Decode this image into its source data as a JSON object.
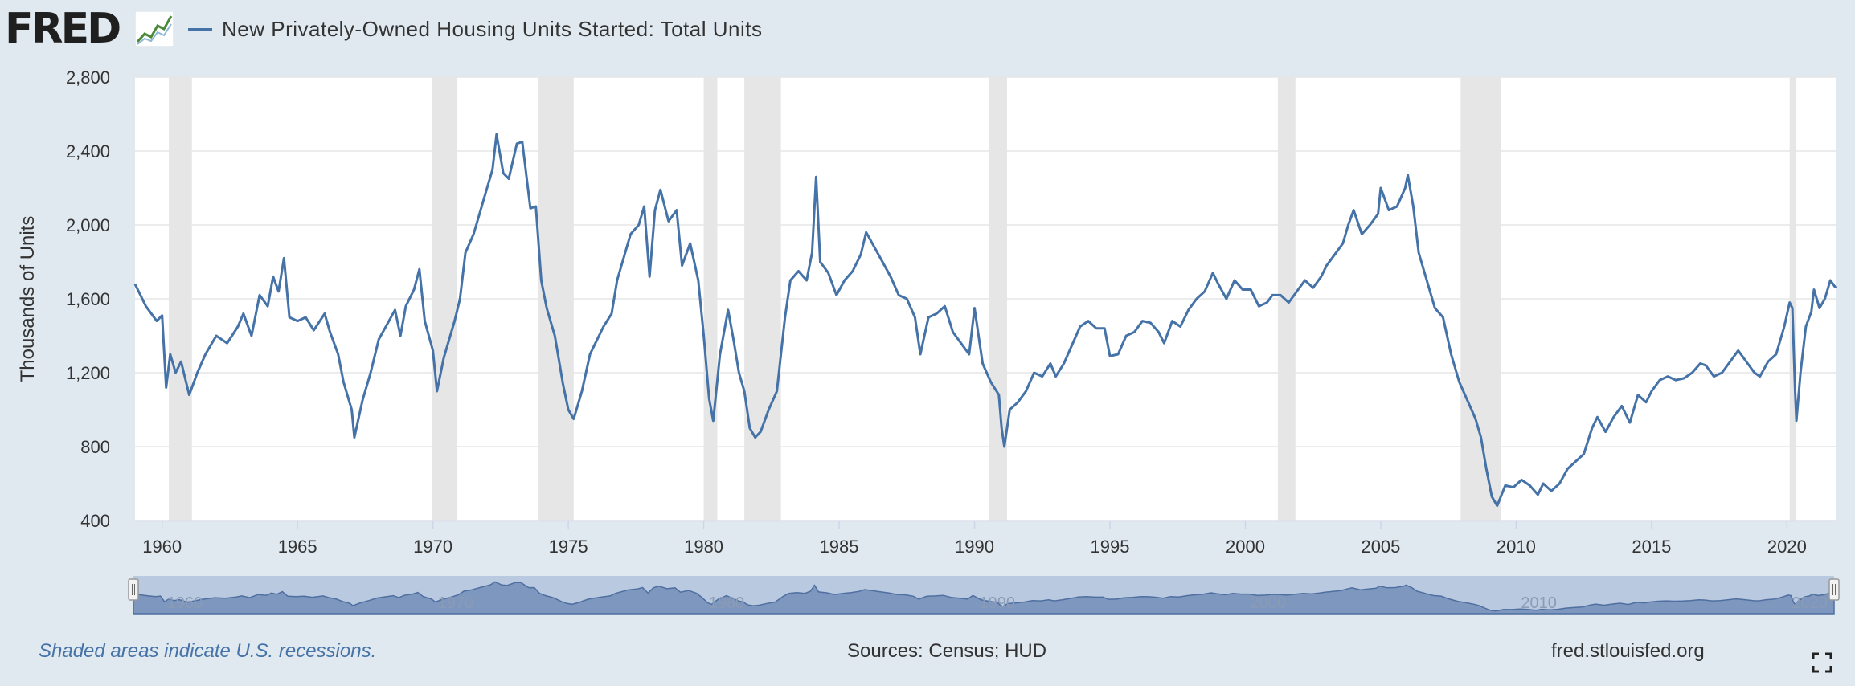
{
  "brand": {
    "name": "FRED",
    "logo_icon": "line-chart-logo-icon"
  },
  "chart_data": {
    "type": "line",
    "title": "New Privately-Owned Housing Units Started: Total Units",
    "ylabel": "Thousands of Units",
    "xlabel": "",
    "x_range": [
      1959.0,
      2021.8
    ],
    "ylim": [
      400,
      2800
    ],
    "y_ticks": [
      400,
      800,
      1200,
      1600,
      2000,
      2400,
      2800
    ],
    "y_tick_labels": [
      "400",
      "800",
      "1,200",
      "1,600",
      "2,000",
      "2,400",
      "2,800"
    ],
    "x_ticks": [
      1960,
      1965,
      1970,
      1975,
      1980,
      1985,
      1990,
      1995,
      2000,
      2005,
      2010,
      2015,
      2020
    ],
    "x_tick_labels": [
      "1960",
      "1965",
      "1970",
      "1975",
      "1980",
      "1985",
      "1990",
      "1995",
      "2000",
      "2005",
      "2010",
      "2015",
      "2020"
    ],
    "nav_tick_labels": [
      "1960",
      "1970",
      "1980",
      "1990",
      "2000",
      "2010",
      "2020"
    ],
    "grid": true,
    "recessions": [
      [
        1960.25,
        1961.1
      ],
      [
        1969.95,
        1970.9
      ],
      [
        1973.9,
        1975.2
      ],
      [
        1980.0,
        1980.5
      ],
      [
        1981.5,
        1982.85
      ],
      [
        1990.55,
        1991.2
      ],
      [
        2001.2,
        2001.85
      ],
      [
        2007.95,
        2009.45
      ],
      [
        2020.1,
        2020.35
      ]
    ],
    "series": [
      {
        "name": "New Privately-Owned Housing Units Started: Total Units",
        "color": "#4572a7",
        "points": [
          [
            1959.0,
            1680
          ],
          [
            1959.4,
            1560
          ],
          [
            1959.8,
            1480
          ],
          [
            1960.0,
            1510
          ],
          [
            1960.15,
            1120
          ],
          [
            1960.3,
            1300
          ],
          [
            1960.5,
            1200
          ],
          [
            1960.7,
            1260
          ],
          [
            1961.0,
            1080
          ],
          [
            1961.3,
            1200
          ],
          [
            1961.6,
            1300
          ],
          [
            1962.0,
            1400
          ],
          [
            1962.4,
            1360
          ],
          [
            1962.8,
            1450
          ],
          [
            1963.0,
            1520
          ],
          [
            1963.3,
            1400
          ],
          [
            1963.6,
            1620
          ],
          [
            1963.9,
            1560
          ],
          [
            1964.1,
            1720
          ],
          [
            1964.3,
            1640
          ],
          [
            1964.5,
            1820
          ],
          [
            1964.7,
            1500
          ],
          [
            1965.0,
            1480
          ],
          [
            1965.3,
            1500
          ],
          [
            1965.6,
            1430
          ],
          [
            1966.0,
            1520
          ],
          [
            1966.2,
            1420
          ],
          [
            1966.5,
            1300
          ],
          [
            1966.7,
            1150
          ],
          [
            1966.9,
            1050
          ],
          [
            1967.0,
            1000
          ],
          [
            1967.1,
            850
          ],
          [
            1967.4,
            1050
          ],
          [
            1967.7,
            1200
          ],
          [
            1968.0,
            1380
          ],
          [
            1968.3,
            1460
          ],
          [
            1968.6,
            1540
          ],
          [
            1968.8,
            1400
          ],
          [
            1969.0,
            1560
          ],
          [
            1969.3,
            1650
          ],
          [
            1969.5,
            1760
          ],
          [
            1969.7,
            1480
          ],
          [
            1970.0,
            1320
          ],
          [
            1970.15,
            1100
          ],
          [
            1970.4,
            1280
          ],
          [
            1970.8,
            1480
          ],
          [
            1971.0,
            1600
          ],
          [
            1971.2,
            1850
          ],
          [
            1971.5,
            1950
          ],
          [
            1971.8,
            2100
          ],
          [
            1972.0,
            2200
          ],
          [
            1972.2,
            2300
          ],
          [
            1972.35,
            2490
          ],
          [
            1972.6,
            2280
          ],
          [
            1972.8,
            2250
          ],
          [
            1973.1,
            2440
          ],
          [
            1973.3,
            2450
          ],
          [
            1973.6,
            2090
          ],
          [
            1973.8,
            2100
          ],
          [
            1974.0,
            1700
          ],
          [
            1974.2,
            1550
          ],
          [
            1974.5,
            1400
          ],
          [
            1974.8,
            1140
          ],
          [
            1975.0,
            1000
          ],
          [
            1975.2,
            950
          ],
          [
            1975.5,
            1100
          ],
          [
            1975.8,
            1300
          ],
          [
            1976.0,
            1360
          ],
          [
            1976.3,
            1450
          ],
          [
            1976.6,
            1520
          ],
          [
            1976.8,
            1700
          ],
          [
            1977.0,
            1800
          ],
          [
            1977.3,
            1950
          ],
          [
            1977.6,
            2000
          ],
          [
            1977.8,
            2100
          ],
          [
            1978.0,
            1720
          ],
          [
            1978.2,
            2080
          ],
          [
            1978.4,
            2190
          ],
          [
            1978.7,
            2020
          ],
          [
            1979.0,
            2080
          ],
          [
            1979.2,
            1780
          ],
          [
            1979.5,
            1900
          ],
          [
            1979.8,
            1700
          ],
          [
            1980.0,
            1400
          ],
          [
            1980.2,
            1060
          ],
          [
            1980.35,
            940
          ],
          [
            1980.6,
            1300
          ],
          [
            1980.9,
            1540
          ],
          [
            1981.1,
            1380
          ],
          [
            1981.3,
            1200
          ],
          [
            1981.5,
            1100
          ],
          [
            1981.7,
            900
          ],
          [
            1981.9,
            850
          ],
          [
            1982.1,
            880
          ],
          [
            1982.4,
            1000
          ],
          [
            1982.7,
            1100
          ],
          [
            1983.0,
            1500
          ],
          [
            1983.2,
            1700
          ],
          [
            1983.5,
            1750
          ],
          [
            1983.8,
            1700
          ],
          [
            1984.0,
            1850
          ],
          [
            1984.15,
            2260
          ],
          [
            1984.3,
            1800
          ],
          [
            1984.6,
            1740
          ],
          [
            1984.9,
            1620
          ],
          [
            1985.2,
            1700
          ],
          [
            1985.5,
            1750
          ],
          [
            1985.8,
            1840
          ],
          [
            1986.0,
            1960
          ],
          [
            1986.3,
            1880
          ],
          [
            1986.6,
            1800
          ],
          [
            1986.9,
            1720
          ],
          [
            1987.2,
            1620
          ],
          [
            1987.5,
            1600
          ],
          [
            1987.8,
            1500
          ],
          [
            1988.0,
            1300
          ],
          [
            1988.3,
            1500
          ],
          [
            1988.6,
            1520
          ],
          [
            1988.9,
            1560
          ],
          [
            1989.2,
            1420
          ],
          [
            1989.5,
            1360
          ],
          [
            1989.8,
            1300
          ],
          [
            1990.0,
            1550
          ],
          [
            1990.3,
            1250
          ],
          [
            1990.6,
            1150
          ],
          [
            1990.9,
            1080
          ],
          [
            1991.0,
            900
          ],
          [
            1991.1,
            800
          ],
          [
            1991.3,
            1000
          ],
          [
            1991.6,
            1040
          ],
          [
            1991.9,
            1100
          ],
          [
            1992.2,
            1200
          ],
          [
            1992.5,
            1180
          ],
          [
            1992.8,
            1250
          ],
          [
            1993.0,
            1180
          ],
          [
            1993.3,
            1250
          ],
          [
            1993.6,
            1350
          ],
          [
            1993.9,
            1450
          ],
          [
            1994.2,
            1480
          ],
          [
            1994.5,
            1440
          ],
          [
            1994.8,
            1440
          ],
          [
            1995.0,
            1290
          ],
          [
            1995.3,
            1300
          ],
          [
            1995.6,
            1400
          ],
          [
            1995.9,
            1420
          ],
          [
            1996.2,
            1480
          ],
          [
            1996.5,
            1470
          ],
          [
            1996.8,
            1420
          ],
          [
            1997.0,
            1360
          ],
          [
            1997.3,
            1480
          ],
          [
            1997.6,
            1450
          ],
          [
            1997.9,
            1540
          ],
          [
            1998.2,
            1600
          ],
          [
            1998.5,
            1640
          ],
          [
            1998.8,
            1740
          ],
          [
            1999.0,
            1680
          ],
          [
            1999.3,
            1600
          ],
          [
            1999.6,
            1700
          ],
          [
            1999.9,
            1650
          ],
          [
            2000.2,
            1650
          ],
          [
            2000.5,
            1560
          ],
          [
            2000.8,
            1580
          ],
          [
            2001.0,
            1620
          ],
          [
            2001.3,
            1620
          ],
          [
            2001.6,
            1580
          ],
          [
            2001.9,
            1640
          ],
          [
            2002.2,
            1700
          ],
          [
            2002.5,
            1660
          ],
          [
            2002.8,
            1720
          ],
          [
            2003.0,
            1780
          ],
          [
            2003.3,
            1840
          ],
          [
            2003.6,
            1900
          ],
          [
            2003.8,
            2000
          ],
          [
            2004.0,
            2080
          ],
          [
            2004.3,
            1950
          ],
          [
            2004.6,
            2000
          ],
          [
            2004.9,
            2060
          ],
          [
            2005.0,
            2200
          ],
          [
            2005.3,
            2080
          ],
          [
            2005.6,
            2100
          ],
          [
            2005.9,
            2200
          ],
          [
            2006.0,
            2270
          ],
          [
            2006.2,
            2100
          ],
          [
            2006.4,
            1850
          ],
          [
            2006.7,
            1700
          ],
          [
            2007.0,
            1550
          ],
          [
            2007.3,
            1500
          ],
          [
            2007.6,
            1300
          ],
          [
            2007.9,
            1150
          ],
          [
            2008.2,
            1050
          ],
          [
            2008.5,
            950
          ],
          [
            2008.7,
            850
          ],
          [
            2008.9,
            680
          ],
          [
            2009.1,
            530
          ],
          [
            2009.3,
            480
          ],
          [
            2009.6,
            590
          ],
          [
            2009.9,
            580
          ],
          [
            2010.2,
            620
          ],
          [
            2010.5,
            590
          ],
          [
            2010.8,
            540
          ],
          [
            2011.0,
            600
          ],
          [
            2011.3,
            560
          ],
          [
            2011.6,
            600
          ],
          [
            2011.9,
            680
          ],
          [
            2012.2,
            720
          ],
          [
            2012.5,
            760
          ],
          [
            2012.8,
            900
          ],
          [
            2013.0,
            960
          ],
          [
            2013.3,
            880
          ],
          [
            2013.6,
            960
          ],
          [
            2013.9,
            1020
          ],
          [
            2014.2,
            930
          ],
          [
            2014.5,
            1080
          ],
          [
            2014.8,
            1040
          ],
          [
            2015.0,
            1100
          ],
          [
            2015.3,
            1160
          ],
          [
            2015.6,
            1180
          ],
          [
            2015.9,
            1160
          ],
          [
            2016.2,
            1170
          ],
          [
            2016.5,
            1200
          ],
          [
            2016.8,
            1250
          ],
          [
            2017.0,
            1240
          ],
          [
            2017.3,
            1180
          ],
          [
            2017.6,
            1200
          ],
          [
            2017.9,
            1260
          ],
          [
            2018.2,
            1320
          ],
          [
            2018.5,
            1260
          ],
          [
            2018.8,
            1200
          ],
          [
            2019.0,
            1180
          ],
          [
            2019.3,
            1260
          ],
          [
            2019.6,
            1300
          ],
          [
            2019.9,
            1450
          ],
          [
            2020.1,
            1580
          ],
          [
            2020.2,
            1550
          ],
          [
            2020.3,
            1100
          ],
          [
            2020.35,
            940
          ],
          [
            2020.5,
            1200
          ],
          [
            2020.7,
            1450
          ],
          [
            2020.9,
            1530
          ],
          [
            2021.0,
            1650
          ],
          [
            2021.2,
            1550
          ],
          [
            2021.4,
            1600
          ],
          [
            2021.6,
            1700
          ],
          [
            2021.8,
            1660
          ]
        ]
      }
    ]
  },
  "footer": {
    "recession_note": "Shaded areas indicate U.S. recessions.",
    "sources": "Sources: Census; HUD",
    "site": "fred.stlouisfed.org",
    "fullscreen_icon": "fullscreen-icon"
  }
}
